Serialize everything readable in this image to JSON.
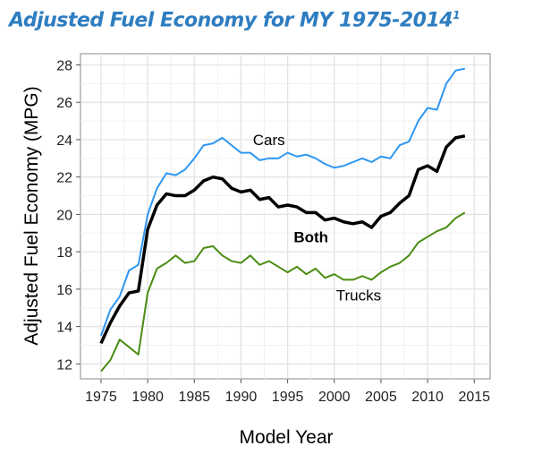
{
  "chart_data": {
    "type": "line",
    "title": "Adjusted Fuel Economy for MY 1975-2014",
    "title_superscript": "1",
    "xlabel": "Model Year",
    "ylabel": "Adjusted Fuel Economy (MPG)",
    "xlim": [
      1972.8,
      2016.7
    ],
    "ylim": [
      11.2,
      28.6
    ],
    "xticks": [
      1975,
      1980,
      1985,
      1990,
      1995,
      2000,
      2005,
      2010,
      2015
    ],
    "yticks": [
      12,
      14,
      16,
      18,
      20,
      22,
      24,
      26,
      28
    ],
    "grid": true,
    "x": [
      1975,
      1976,
      1977,
      1978,
      1979,
      1980,
      1981,
      1982,
      1983,
      1984,
      1985,
      1986,
      1987,
      1988,
      1989,
      1990,
      1991,
      1992,
      1993,
      1994,
      1995,
      1996,
      1997,
      1998,
      1999,
      2000,
      2001,
      2002,
      2003,
      2004,
      2005,
      2006,
      2007,
      2008,
      2009,
      2010,
      2011,
      2012,
      2013,
      2014
    ],
    "series": [
      {
        "name": "Cars",
        "color": "#2e96f2",
        "label_x": 1993,
        "label_y": 23.7,
        "values": [
          13.5,
          14.9,
          15.6,
          17.0,
          17.3,
          20.0,
          21.4,
          22.2,
          22.1,
          22.4,
          23.0,
          23.7,
          23.8,
          24.1,
          23.7,
          23.3,
          23.3,
          22.9,
          23.0,
          23.0,
          23.3,
          23.1,
          23.2,
          23.0,
          22.7,
          22.5,
          22.6,
          22.8,
          23.0,
          22.8,
          23.1,
          23.0,
          23.7,
          23.9,
          25.0,
          25.7,
          25.6,
          27.0,
          27.7,
          27.8
        ]
      },
      {
        "name": "Both",
        "color": "#000000",
        "label_x": 1997.5,
        "label_y": 18.5,
        "values": [
          13.1,
          14.2,
          15.1,
          15.8,
          15.9,
          19.2,
          20.5,
          21.1,
          21.0,
          21.0,
          21.3,
          21.8,
          22.0,
          21.9,
          21.4,
          21.2,
          21.3,
          20.8,
          20.9,
          20.4,
          20.5,
          20.4,
          20.1,
          20.1,
          19.7,
          19.8,
          19.6,
          19.5,
          19.6,
          19.3,
          19.9,
          20.1,
          20.6,
          21.0,
          22.4,
          22.6,
          22.3,
          23.6,
          24.1,
          24.2
        ]
      },
      {
        "name": "Trucks",
        "color": "#4a8c12",
        "label_x": 2002.6,
        "label_y": 15.4,
        "values": [
          11.6,
          12.2,
          13.3,
          12.9,
          12.5,
          15.8,
          17.1,
          17.4,
          17.8,
          17.4,
          17.5,
          18.2,
          18.3,
          17.8,
          17.5,
          17.4,
          17.8,
          17.3,
          17.5,
          17.2,
          16.9,
          17.2,
          16.8,
          17.1,
          16.6,
          16.8,
          16.5,
          16.5,
          16.7,
          16.5,
          16.9,
          17.2,
          17.4,
          17.8,
          18.5,
          18.8,
          19.1,
          19.3,
          19.8,
          20.1
        ]
      }
    ]
  }
}
